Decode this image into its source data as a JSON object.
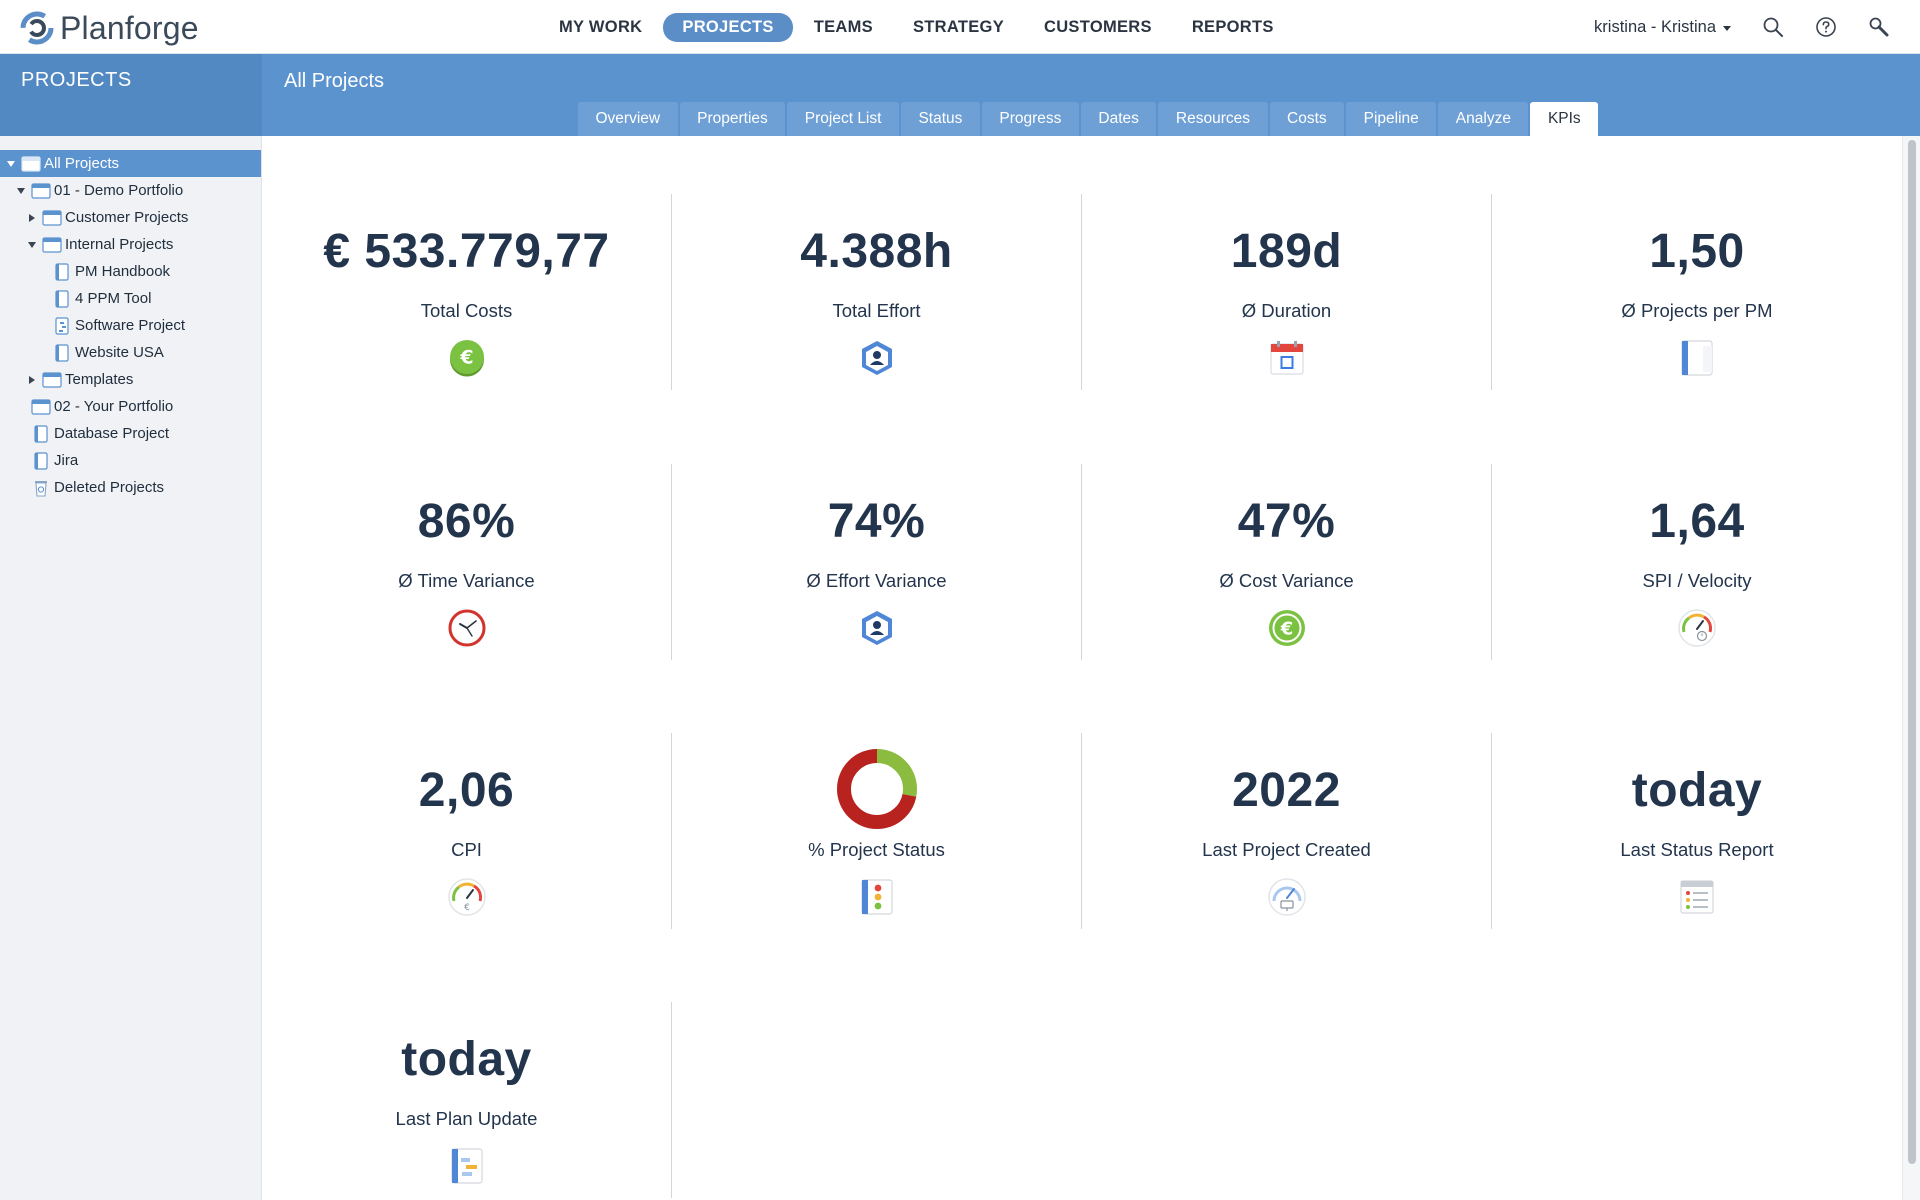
{
  "app": {
    "name": "Planforge"
  },
  "nav": {
    "items": [
      {
        "label": "MY WORK",
        "active": false
      },
      {
        "label": "PROJECTS",
        "active": true
      },
      {
        "label": "TEAMS",
        "active": false
      },
      {
        "label": "STRATEGY",
        "active": false
      },
      {
        "label": "CUSTOMERS",
        "active": false
      },
      {
        "label": "REPORTS",
        "active": false
      }
    ],
    "user": "kristina - Kristina",
    "icons": [
      "search-icon",
      "help-icon",
      "admin-wrench-icon"
    ]
  },
  "header": {
    "section": "PROJECTS",
    "title": "All Projects",
    "tabs": [
      {
        "label": "Overview",
        "active": false
      },
      {
        "label": "Properties",
        "active": false
      },
      {
        "label": "Project List",
        "active": false
      },
      {
        "label": "Status",
        "active": false
      },
      {
        "label": "Progress",
        "active": false
      },
      {
        "label": "Dates",
        "active": false
      },
      {
        "label": "Resources",
        "active": false
      },
      {
        "label": "Costs",
        "active": false
      },
      {
        "label": "Pipeline",
        "active": false
      },
      {
        "label": "Analyze",
        "active": false
      },
      {
        "label": "KPIs",
        "active": true
      }
    ]
  },
  "tree": [
    {
      "label": "All Projects",
      "level": 0,
      "toggle": "down",
      "icon": "portfolio-icon",
      "selected": true
    },
    {
      "label": "01 - Demo Portfolio",
      "level": 1,
      "toggle": "down",
      "icon": "portfolio-icon",
      "selected": false
    },
    {
      "label": "Customer Projects",
      "level": 2,
      "toggle": "right",
      "icon": "portfolio-icon",
      "selected": false
    },
    {
      "label": "Internal Projects",
      "level": 2,
      "toggle": "down",
      "icon": "portfolio-icon",
      "selected": false
    },
    {
      "label": "PM Handbook",
      "level": 3,
      "toggle": "none",
      "icon": "project-icon",
      "selected": false
    },
    {
      "label": "4 PPM Tool",
      "level": 3,
      "toggle": "none",
      "icon": "project-icon",
      "selected": false
    },
    {
      "label": "Software Project",
      "level": 3,
      "toggle": "none",
      "icon": "project-gantt-icon",
      "selected": false
    },
    {
      "label": "Website USA",
      "level": 3,
      "toggle": "none",
      "icon": "project-icon",
      "selected": false
    },
    {
      "label": "Templates",
      "level": 2,
      "toggle": "right",
      "icon": "portfolio-icon",
      "selected": false
    },
    {
      "label": "02 - Your Portfolio",
      "level": 1,
      "toggle": "none",
      "icon": "portfolio-icon",
      "selected": false
    },
    {
      "label": "Database Project",
      "level": 1,
      "toggle": "none",
      "icon": "project-icon",
      "selected": false
    },
    {
      "label": "Jira",
      "level": 1,
      "toggle": "none",
      "icon": "project-icon",
      "selected": false
    },
    {
      "label": "Deleted Projects",
      "level": 1,
      "toggle": "none",
      "icon": "recycle-bin-icon",
      "selected": false
    }
  ],
  "kpis": [
    {
      "value": "€ 533.779,77",
      "label": "Total Costs",
      "icon": "euro-coin-icon"
    },
    {
      "value": "4.388h",
      "label": "Total Effort",
      "icon": "resource-badge-icon"
    },
    {
      "value": "189d",
      "label": "Ø Duration",
      "icon": "calendar-icon"
    },
    {
      "value": "1,50",
      "label": "Ø Projects per PM",
      "icon": "project-icon"
    },
    {
      "value": "86%",
      "label": "Ø Time Variance",
      "icon": "clock-icon"
    },
    {
      "value": "74%",
      "label": "Ø Effort Variance",
      "icon": "resource-badge-icon"
    },
    {
      "value": "47%",
      "label": "Ø Cost Variance",
      "icon": "euro-coin-icon"
    },
    {
      "value": "1,64",
      "label": "SPI / Velocity",
      "icon": "speedometer-clock-icon"
    },
    {
      "value": "2,06",
      "label": "CPI",
      "icon": "speedometer-euro-icon"
    },
    {
      "value": "",
      "label": "% Project Status",
      "icon": "traffic-light-icon",
      "donut": {
        "red_percent": 72,
        "green_percent": 28
      }
    },
    {
      "value": "2022",
      "label": "Last Project Created",
      "icon": "speedometer-monitor-icon"
    },
    {
      "value": "today",
      "label": "Last Status Report",
      "icon": "status-report-icon"
    },
    {
      "value": "today",
      "label": "Last Plan Update",
      "icon": "gantt-plan-icon"
    }
  ],
  "colors": {
    "accent": "#5b93cf",
    "value_text": "#23344d",
    "donut_red": "#b8231f",
    "donut_green": "#8cbc3f"
  }
}
